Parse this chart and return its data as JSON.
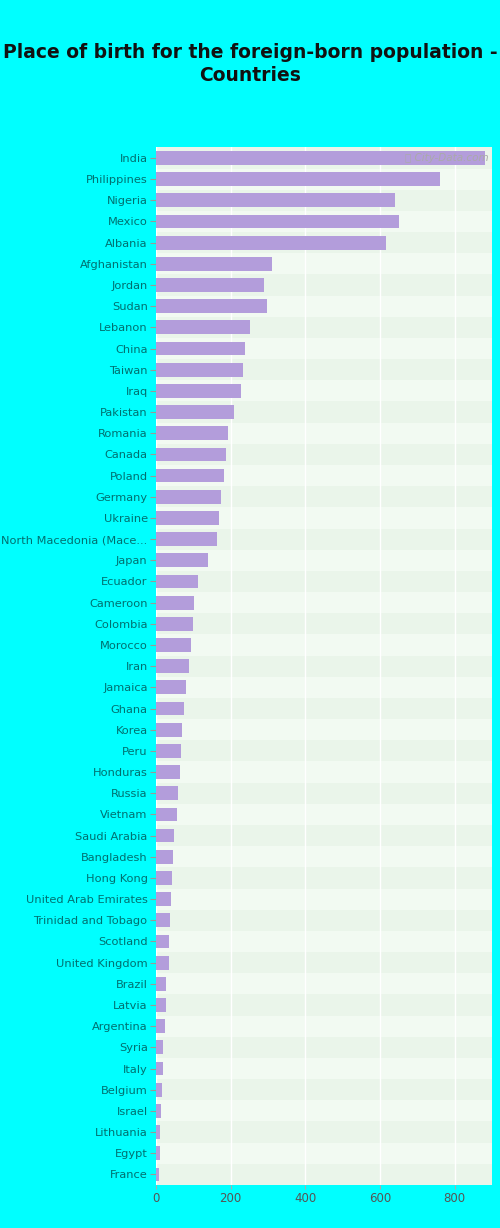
{
  "title": "Place of birth for the foreign-born population -\nCountries",
  "categories": [
    "India",
    "Philippines",
    "Nigeria",
    "Mexico",
    "Albania",
    "Afghanistan",
    "Jordan",
    "Sudan",
    "Lebanon",
    "China",
    "Taiwan",
    "Iraq",
    "Pakistan",
    "Romania",
    "Canada",
    "Poland",
    "Germany",
    "Ukraine",
    "North Macedonia (Mace...",
    "Japan",
    "Ecuador",
    "Cameroon",
    "Colombia",
    "Morocco",
    "Iran",
    "Jamaica",
    "Ghana",
    "Korea",
    "Peru",
    "Honduras",
    "Russia",
    "Vietnam",
    "Saudi Arabia",
    "Bangladesh",
    "Hong Kong",
    "United Arab Emirates",
    "Trinidad and Tobago",
    "Scotland",
    "United Kingdom",
    "Brazil",
    "Latvia",
    "Argentina",
    "Syria",
    "Italy",
    "Belgium",
    "Israel",
    "Lithuania",
    "Egypt",
    "France"
  ],
  "values": [
    880,
    760,
    640,
    650,
    615,
    310,
    288,
    296,
    252,
    238,
    232,
    228,
    208,
    193,
    188,
    183,
    173,
    168,
    163,
    138,
    113,
    103,
    98,
    93,
    88,
    80,
    76,
    70,
    66,
    63,
    60,
    56,
    48,
    46,
    43,
    40,
    38,
    36,
    35,
    28,
    26,
    23,
    20,
    18,
    16,
    14,
    12,
    10,
    8
  ],
  "bar_color": "#b39ddb",
  "bg_color_left": "#00ffff",
  "chart_bg_color1": "#eaf5ea",
  "chart_bg_color2": "#f2faf2",
  "title_color": "#111111",
  "label_color": "#007070",
  "tick_color": "#555555",
  "xlim": [
    0,
    900
  ],
  "xticks": [
    0,
    200,
    400,
    600,
    800
  ],
  "figsize": [
    5.0,
    12.28
  ],
  "dpi": 100
}
